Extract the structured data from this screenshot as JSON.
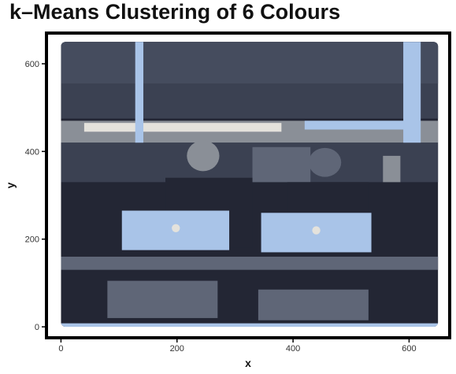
{
  "chart_data": {
    "type": "scatter",
    "title": "k–Means Clustering of 6 Colours",
    "xlabel": "x",
    "ylabel": "y",
    "xlim": [
      -25,
      670
    ],
    "ylim": [
      -25,
      670
    ],
    "x_ticks": [
      0,
      200,
      400,
      600
    ],
    "y_ticks": [
      0,
      200,
      400,
      600
    ],
    "image_extent": {
      "x": [
        0,
        650
      ],
      "y": [
        0,
        650
      ]
    },
    "grid": false,
    "legend": "none",
    "cluster_colours": [
      "#232634",
      "#3b4152",
      "#5f6677",
      "#8a8f97",
      "#a9c4e8",
      "#e4e2dc"
    ]
  }
}
